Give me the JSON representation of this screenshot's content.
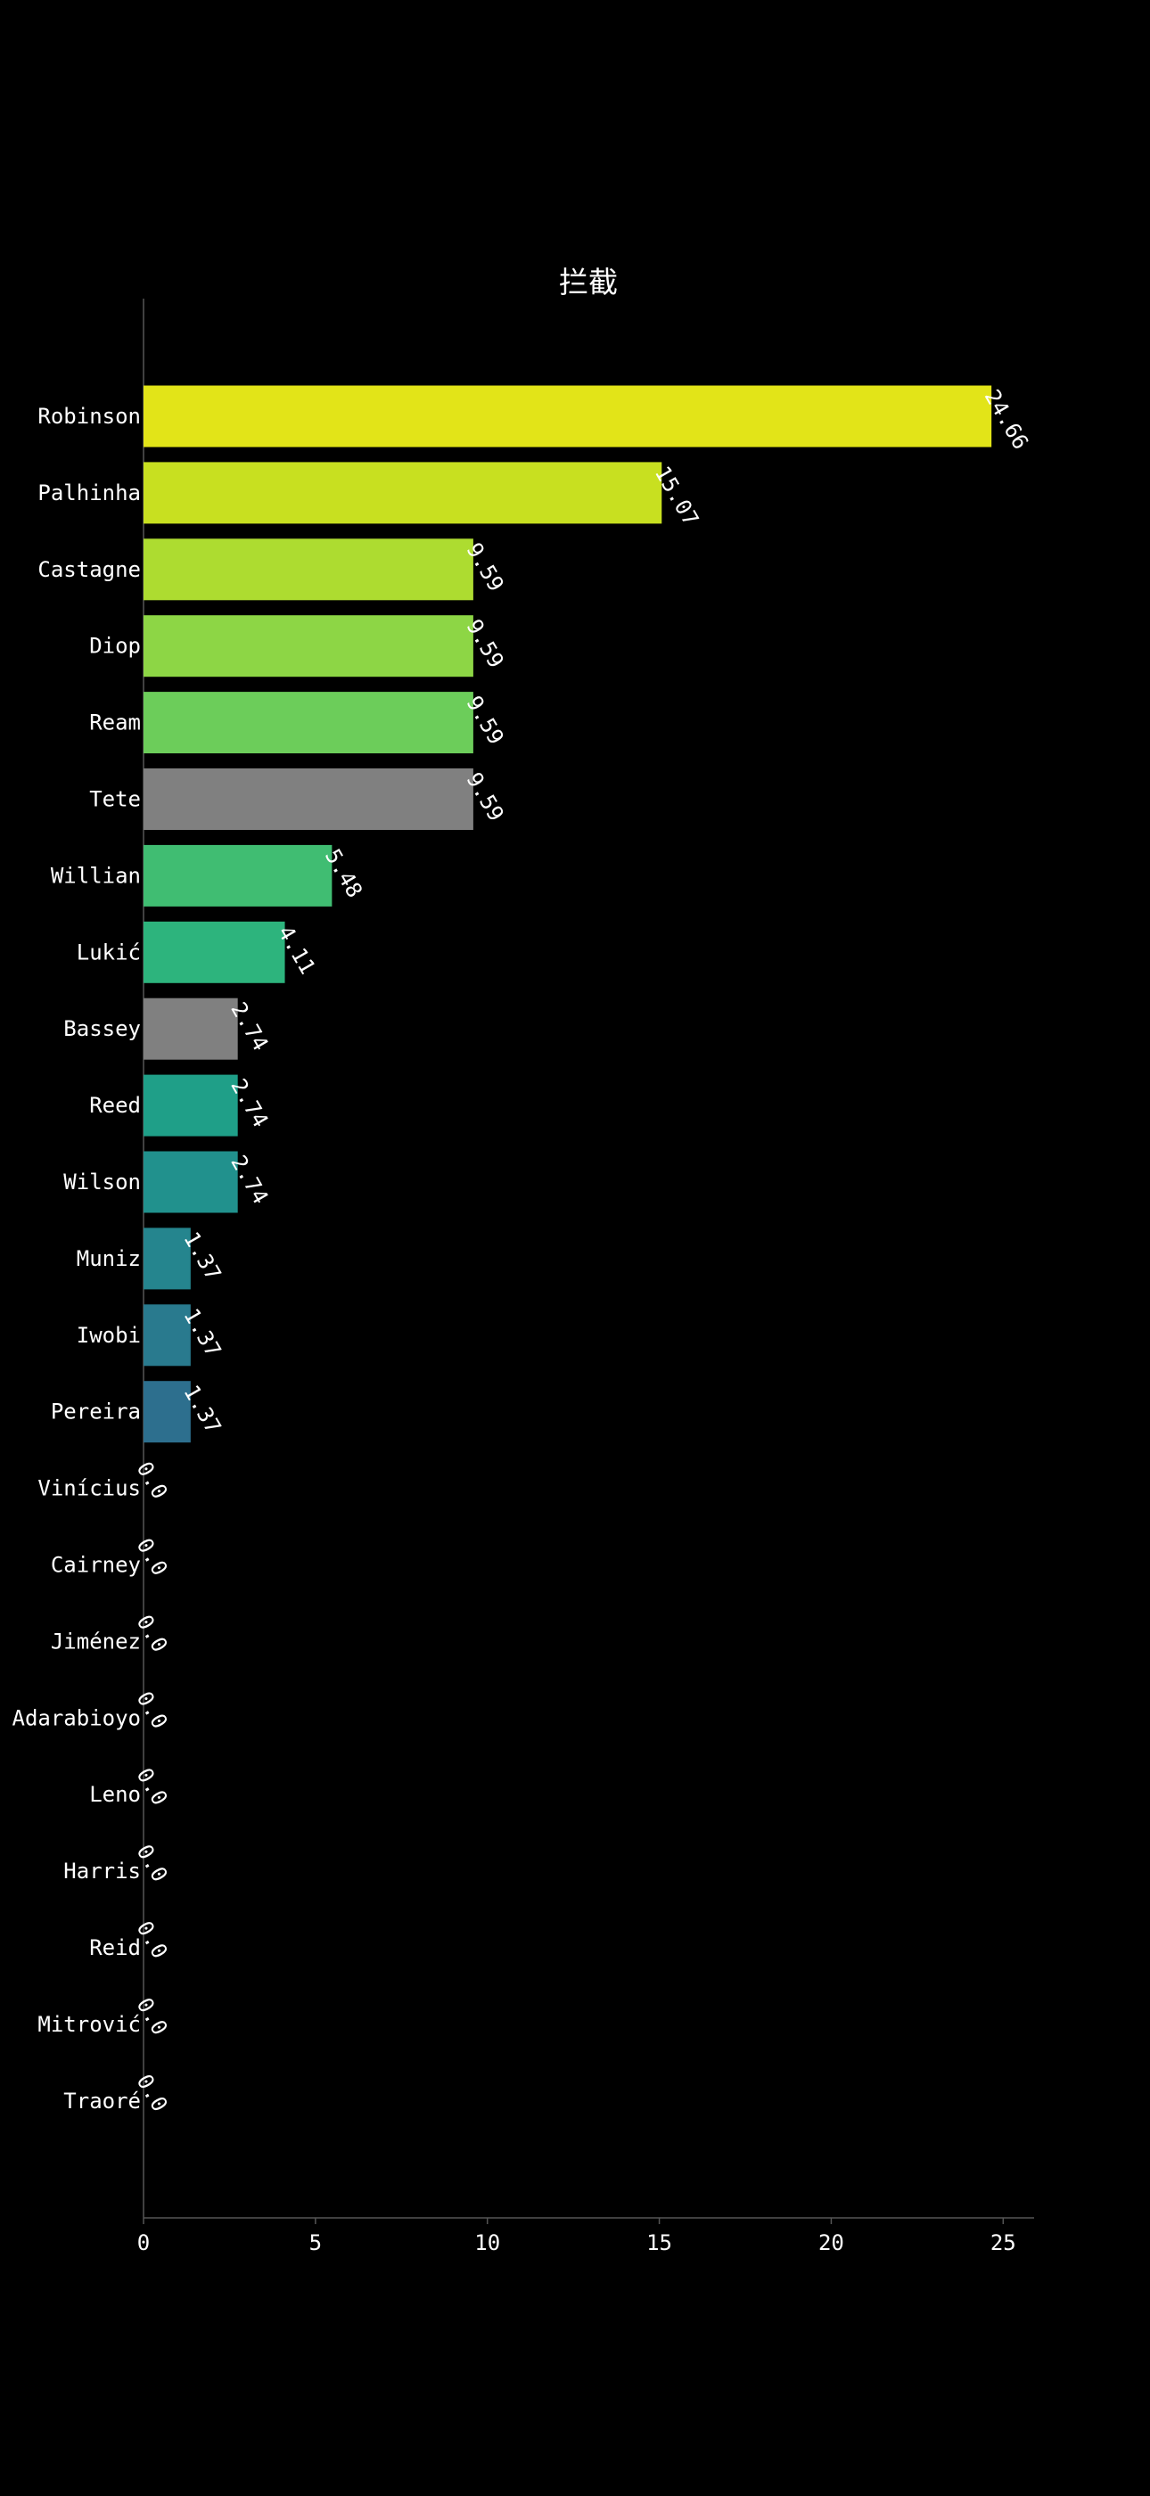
{
  "chart_data": {
    "type": "bar",
    "orientation": "horizontal",
    "title": "拦截",
    "xlabel": "",
    "ylabel": "",
    "xlim": [
      0,
      25.9
    ],
    "xticks": [
      0,
      5,
      10,
      15,
      20,
      25
    ],
    "grid": false,
    "legend": "none",
    "categories": [
      "Robinson",
      "Palhinha",
      "Castagne",
      "Diop",
      "Ream",
      "Tete",
      "Willian",
      "Lukić",
      "Bassey",
      "Reed",
      "Wilson",
      "Muniz",
      "Iwobi",
      "Pereira",
      "Vinícius",
      "Cairney",
      "Jiménez",
      "Adarabioyo",
      "Leno",
      "Harris",
      "Reid",
      "Mitrović",
      "Traoré"
    ],
    "values": [
      24.66,
      15.07,
      9.59,
      9.59,
      9.59,
      9.59,
      5.48,
      4.11,
      2.74,
      2.74,
      2.74,
      1.37,
      1.37,
      1.37,
      0.0,
      0.0,
      0.0,
      0.0,
      0.0,
      0.0,
      0.0,
      0.0,
      0.0
    ],
    "value_labels": [
      "24.66",
      "15.07",
      "9.59",
      "9.59",
      "9.59",
      "9.59",
      "5.48",
      "4.11",
      "2.74",
      "2.74",
      "2.74",
      "1.37",
      "1.37",
      "1.37",
      "0.0",
      "0.0",
      "0.0",
      "0.0",
      "0.0",
      "0.0",
      "0.0",
      "0.0",
      "0.0"
    ],
    "colors": [
      "#e2e418",
      "#c8e020",
      "#addc30",
      "#8dd645",
      "#6ccd5a",
      "#808080",
      "#40bd72",
      "#2db47d",
      "#808080",
      "#1f9f88",
      "#21918d",
      "#25858e",
      "#297a8e",
      "#2d6f8e",
      "#808080",
      "#808080",
      "#808080",
      "#808080",
      "#808080",
      "#808080",
      "#808080",
      "#808080",
      "#808080"
    ]
  },
  "colors": {
    "background": "#000000",
    "axis": "#555555",
    "text": "#ffffff"
  }
}
